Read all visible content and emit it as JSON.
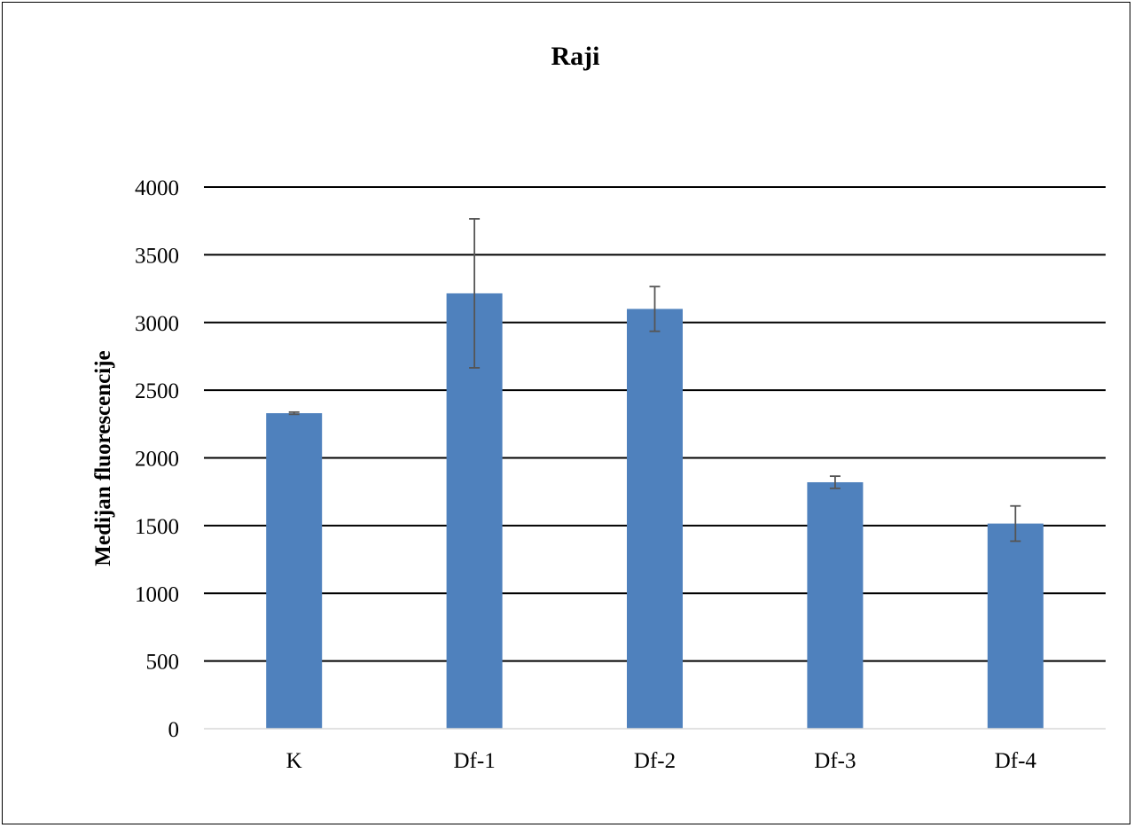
{
  "chart_data": {
    "type": "bar",
    "title": "Raji",
    "xlabel": "",
    "ylabel": "Medijan fluorescencije",
    "categories": [
      "K",
      "Df-1",
      "Df-2",
      "Df-3",
      "Df-4"
    ],
    "values": [
      2330,
      3215,
      3100,
      1820,
      1515
    ],
    "error": [
      8,
      550,
      165,
      45,
      130
    ],
    "ylim": [
      0,
      4000
    ],
    "yticks": [
      0,
      500,
      1000,
      1500,
      2000,
      2500,
      3000,
      3500,
      4000
    ],
    "grid": true,
    "legend": "none",
    "colors": {
      "bar": "#4f81bd",
      "grid": "#000000",
      "error": "#555555",
      "axis": "#d9d9d9"
    }
  }
}
